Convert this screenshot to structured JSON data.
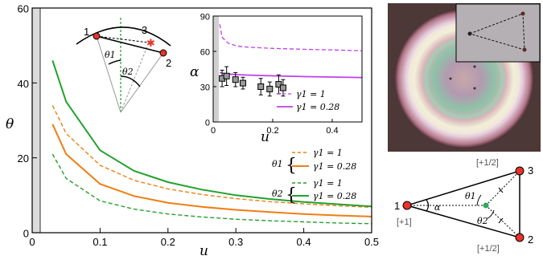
{
  "chart_data": [
    {
      "type": "line",
      "xlabel": "u",
      "ylabel": "θ",
      "xlim": [
        0,
        0.5
      ],
      "ylim": [
        0,
        60
      ],
      "xticks": [
        "0",
        "0.1",
        "0.2",
        "0.3",
        "0.4",
        "0.5"
      ],
      "yticks": [
        "0",
        "20",
        "40",
        "60"
      ],
      "excluded_region_u_max": 0.02,
      "legend_placement": "lower-right",
      "legend_groups": [
        {
          "label": "θ1",
          "entries": [
            "γ1 = 1",
            "γ1 = 0.28"
          ]
        },
        {
          "label": "θ2",
          "entries": [
            "γ1 = 1",
            "γ1 = 0.28"
          ]
        }
      ],
      "series": [
        {
          "group": "θ1",
          "name": "γ1 = 1",
          "color": "#f07d12",
          "dash": true,
          "x": [
            0.03,
            0.05,
            0.1,
            0.15,
            0.2,
            0.25,
            0.3,
            0.35,
            0.4,
            0.45,
            0.5
          ],
          "y": [
            34,
            26.5,
            18,
            14,
            11.7,
            10.2,
            9.1,
            8.3,
            7.7,
            7.2,
            6.8
          ]
        },
        {
          "group": "θ1",
          "name": "γ1 = 0.28",
          "color": "#f07d12",
          "dash": false,
          "x": [
            0.03,
            0.05,
            0.1,
            0.15,
            0.2,
            0.25,
            0.3,
            0.35,
            0.4,
            0.45,
            0.5
          ],
          "y": [
            29,
            21,
            13,
            9.8,
            8,
            6.9,
            6.1,
            5.5,
            5,
            4.6,
            4.3
          ]
        },
        {
          "group": "θ2",
          "name": "γ1 = 1",
          "color": "#22a12d",
          "dash": true,
          "x": [
            0.03,
            0.05,
            0.1,
            0.15,
            0.2,
            0.25,
            0.3,
            0.35,
            0.4,
            0.45,
            0.5
          ],
          "y": [
            21,
            14.5,
            8.5,
            6.3,
            5,
            4.2,
            3.6,
            3.2,
            2.9,
            2.6,
            2.4
          ]
        },
        {
          "group": "θ2",
          "name": "γ1 = 0.28",
          "color": "#22a12d",
          "dash": false,
          "x": [
            0.03,
            0.05,
            0.1,
            0.15,
            0.2,
            0.25,
            0.3,
            0.35,
            0.4,
            0.45,
            0.5
          ],
          "y": [
            46,
            35,
            22,
            16.5,
            13.5,
            11.5,
            10,
            9,
            8.2,
            7.6,
            7
          ]
        }
      ]
    },
    {
      "type": "line",
      "inset": true,
      "xlabel": "u",
      "ylabel": "α",
      "xlim": [
        0,
        0.5
      ],
      "ylim": [
        0,
        90
      ],
      "xticks": [
        "0",
        "0.2",
        "0.4"
      ],
      "yticks": [
        "0",
        "30",
        "60",
        "90"
      ],
      "excluded_region_u_max": 0.02,
      "legend_placement": "lower-right",
      "series": [
        {
          "name": "γ1 = 1",
          "color": "#c13fea",
          "dash": true,
          "x": [
            0.022,
            0.03,
            0.05,
            0.08,
            0.12,
            0.2,
            0.3,
            0.4,
            0.5
          ],
          "y": [
            83,
            72,
            67,
            64.5,
            63.5,
            62.5,
            61.8,
            61.2,
            60.5
          ]
        },
        {
          "name": "γ1 = 0.28",
          "color": "#c13fea",
          "dash": false,
          "x": [
            0.022,
            0.03,
            0.05,
            0.08,
            0.12,
            0.2,
            0.3,
            0.4,
            0.5
          ],
          "y": [
            42,
            41.5,
            40.7,
            40.2,
            39.8,
            39.2,
            38.6,
            38.2,
            37.8
          ]
        }
      ],
      "points": {
        "marker": "square",
        "x": [
          0.03,
          0.045,
          0.075,
          0.1,
          0.16,
          0.19,
          0.22,
          0.235
        ],
        "y": [
          37,
          39,
          36,
          33,
          30,
          28,
          32,
          29
        ],
        "err": [
          7,
          8,
          6,
          5,
          7,
          6,
          8,
          7
        ]
      }
    }
  ],
  "diagram_top": {
    "point_labels": [
      "1",
      "3",
      "2"
    ],
    "angle_labels": [
      "θ1",
      "θ2"
    ]
  },
  "diagram_bottom": {
    "point_labels": [
      "1",
      "3",
      "2"
    ],
    "charge_labels": [
      "[+1]",
      "[+1/2]",
      "[+1/2]"
    ],
    "angle_labels": [
      "α",
      "θ1",
      "θ2"
    ]
  }
}
